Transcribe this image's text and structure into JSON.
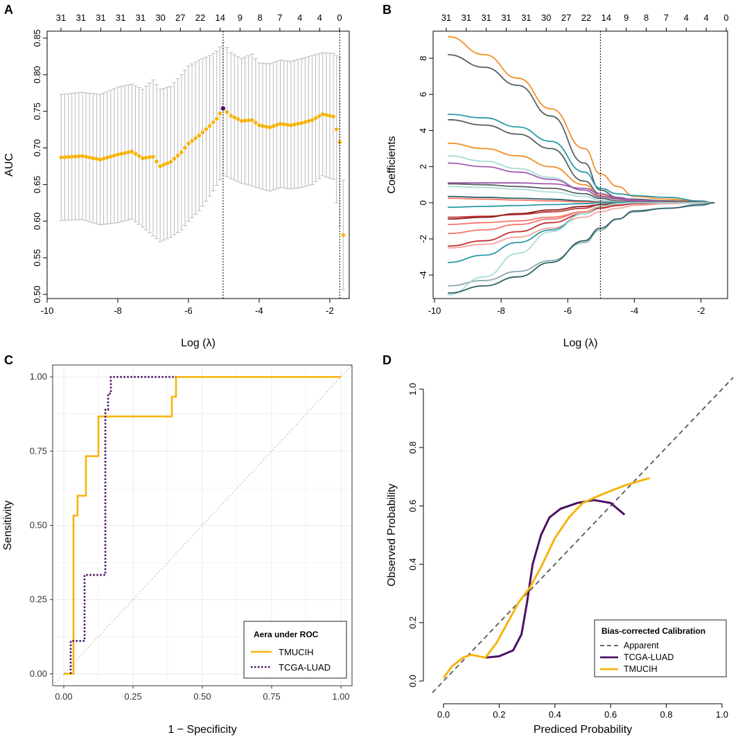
{
  "colors": {
    "gold": "#f6b40e",
    "purple": "#4b1060",
    "errorbar": "#b8b8b8",
    "grid": "#ebebeb",
    "diagonal": "#bdbdbd",
    "dashed": "#555555"
  },
  "chart_data": [
    {
      "panel": "A",
      "type": "scatter",
      "subtype": "cv-auc-errorbars",
      "xlabel": "Log (λ)",
      "ylabel": "AUC",
      "xlim": [
        -10,
        -1.45
      ],
      "ylim": [
        0.5,
        0.85
      ],
      "xticks": [
        "-10",
        "-8",
        "-6",
        "-4",
        "-2"
      ],
      "yticks": [
        "0.50",
        "0.55",
        "0.60",
        "0.65",
        "0.70",
        "0.75",
        "0.80",
        "0.85"
      ],
      "top_axis_labels": [
        "31",
        "31",
        "31",
        "31",
        "31",
        "30",
        "27",
        "22",
        "14",
        "9",
        "8",
        "7",
        "4",
        "4",
        "0"
      ],
      "vlines": [
        -5.02,
        -1.72
      ],
      "highlight_point": {
        "x": -5.02,
        "y": 0.754
      },
      "points": [
        {
          "x": -9.6,
          "y": 0.687,
          "lo": 0.601,
          "hi": 0.773
        },
        {
          "x": -9.0,
          "y": 0.689,
          "lo": 0.602,
          "hi": 0.776
        },
        {
          "x": -8.5,
          "y": 0.684,
          "lo": 0.595,
          "hi": 0.773
        },
        {
          "x": -8.0,
          "y": 0.691,
          "lo": 0.598,
          "hi": 0.783
        },
        {
          "x": -7.6,
          "y": 0.695,
          "lo": 0.603,
          "hi": 0.787
        },
        {
          "x": -7.3,
          "y": 0.686,
          "lo": 0.592,
          "hi": 0.78
        },
        {
          "x": -7.0,
          "y": 0.688,
          "lo": 0.58,
          "hi": 0.793
        },
        {
          "x": -6.8,
          "y": 0.675,
          "lo": 0.572,
          "hi": 0.78
        },
        {
          "x": -6.5,
          "y": 0.681,
          "lo": 0.578,
          "hi": 0.784
        },
        {
          "x": -6.2,
          "y": 0.694,
          "lo": 0.588,
          "hi": 0.8
        },
        {
          "x": -6.0,
          "y": 0.706,
          "lo": 0.6,
          "hi": 0.812
        },
        {
          "x": -5.7,
          "y": 0.717,
          "lo": 0.614,
          "hi": 0.82
        },
        {
          "x": -5.4,
          "y": 0.73,
          "lo": 0.634,
          "hi": 0.826
        },
        {
          "x": -5.2,
          "y": 0.74,
          "lo": 0.649,
          "hi": 0.832
        },
        {
          "x": -5.02,
          "y": 0.754,
          "lo": 0.664,
          "hi": 0.844
        },
        {
          "x": -4.8,
          "y": 0.744,
          "lo": 0.658,
          "hi": 0.83
        },
        {
          "x": -4.5,
          "y": 0.737,
          "lo": 0.652,
          "hi": 0.822
        },
        {
          "x": -4.2,
          "y": 0.738,
          "lo": 0.648,
          "hi": 0.828
        },
        {
          "x": -4.0,
          "y": 0.731,
          "lo": 0.645,
          "hi": 0.816
        },
        {
          "x": -3.7,
          "y": 0.728,
          "lo": 0.641,
          "hi": 0.815
        },
        {
          "x": -3.4,
          "y": 0.733,
          "lo": 0.646,
          "hi": 0.82
        },
        {
          "x": -3.1,
          "y": 0.731,
          "lo": 0.644,
          "hi": 0.818
        },
        {
          "x": -2.8,
          "y": 0.734,
          "lo": 0.646,
          "hi": 0.822
        },
        {
          "x": -2.5,
          "y": 0.738,
          "lo": 0.65,
          "hi": 0.826
        },
        {
          "x": -2.2,
          "y": 0.746,
          "lo": 0.662,
          "hi": 0.83
        },
        {
          "x": -1.9,
          "y": 0.743,
          "lo": 0.657,
          "hi": 0.829
        },
        {
          "x": -1.72,
          "y": 0.708,
          "lo": 0.593,
          "hi": 0.823
        },
        {
          "x": -1.62,
          "y": 0.581,
          "lo": 0.506,
          "hi": 0.656
        }
      ]
    },
    {
      "panel": "B",
      "type": "line",
      "subtype": "lasso-coefficient-paths",
      "xlabel": "Log (λ)",
      "ylabel": "Coefficients",
      "xlim": [
        -10,
        -1.2
      ],
      "ylim": [
        -5.3,
        9.5
      ],
      "xticks": [
        "-10",
        "-8",
        "-6",
        "-4",
        "-2"
      ],
      "yticks": [
        "-4",
        "-2",
        "0",
        "2",
        "4",
        "6",
        "8"
      ],
      "top_axis_labels": [
        "31",
        "31",
        "31",
        "31",
        "31",
        "30",
        "27",
        "22",
        "14",
        "9",
        "8",
        "7",
        "4",
        "4",
        "0"
      ],
      "vline": -5.02,
      "x": [
        -9.6,
        -8.5,
        -7.5,
        -6.5,
        -5.5,
        -5.02,
        -4.5,
        -4.0,
        -3.0,
        -2.0,
        -1.6
      ],
      "series": [
        {
          "color": "#f28e2b",
          "values": [
            9.2,
            8.2,
            6.9,
            5.2,
            3.0,
            1.6,
            0.9,
            0.35,
            0.2,
            0.08,
            0
          ]
        },
        {
          "color": "#555f5f",
          "values": [
            8.2,
            7.5,
            6.5,
            4.8,
            2.2,
            0.7,
            0.3,
            0.15,
            0.1,
            0.05,
            0
          ]
        },
        {
          "color": "#2a9aa8",
          "values": [
            4.9,
            4.7,
            4.2,
            3.4,
            1.7,
            0.8,
            0.5,
            0.4,
            0.3,
            0.1,
            0
          ]
        },
        {
          "color": "#555f5f",
          "values": [
            4.6,
            4.3,
            3.8,
            3.0,
            1.2,
            0.5,
            0.25,
            0.2,
            0.1,
            0.05,
            0
          ]
        },
        {
          "color": "#f28e2b",
          "values": [
            3.3,
            3.0,
            2.6,
            2.0,
            1.0,
            0.4,
            0.2,
            0.1,
            0.05,
            0.02,
            0
          ]
        },
        {
          "color": "#aadcd7",
          "values": [
            2.6,
            2.3,
            1.9,
            1.4,
            0.7,
            0.3,
            0.1,
            0.05,
            0.02,
            0.01,
            0
          ]
        },
        {
          "color": "#a25ab0",
          "values": [
            2.2,
            2.0,
            1.7,
            1.3,
            0.7,
            0.35,
            0.2,
            0.1,
            0.05,
            0.02,
            0
          ]
        },
        {
          "color": "#a25ab0",
          "values": [
            1.1,
            1.1,
            1.1,
            1.05,
            0.8,
            0.5,
            0.3,
            0.15,
            0.05,
            0.02,
            0
          ]
        },
        {
          "color": "#555f5f",
          "values": [
            1.05,
            1.0,
            0.9,
            0.8,
            0.5,
            0.25,
            0.1,
            0.05,
            0.02,
            0.01,
            0
          ]
        },
        {
          "color": "#aadcd7",
          "values": [
            0.9,
            0.85,
            0.75,
            0.6,
            0.35,
            0.15,
            0.05,
            0.02,
            0.01,
            0,
            0
          ]
        },
        {
          "color": "#2f5f64",
          "values": [
            0.35,
            0.3,
            0.25,
            0.2,
            0.1,
            0.05,
            0.02,
            0.01,
            0,
            0,
            0
          ]
        },
        {
          "color": "#f4766a",
          "values": [
            0.25,
            0.2,
            0.15,
            0.1,
            0.05,
            0.02,
            0.01,
            0,
            0,
            0,
            0
          ]
        },
        {
          "color": "#2a9aa8",
          "values": [
            -0.25,
            -0.2,
            -0.15,
            -0.1,
            -0.05,
            0,
            0,
            0,
            0,
            0,
            0
          ]
        },
        {
          "color": "#c03030",
          "values": [
            -0.8,
            -0.75,
            -0.65,
            -0.5,
            -0.3,
            -0.1,
            -0.05,
            0,
            0,
            0,
            0
          ]
        },
        {
          "color": "#8b1e1e",
          "values": [
            -0.9,
            -0.8,
            -0.6,
            -0.4,
            -0.2,
            -0.1,
            -0.05,
            -0.02,
            0,
            0,
            0
          ]
        },
        {
          "color": "#f4766a",
          "values": [
            -1.2,
            -1.1,
            -1.0,
            -0.8,
            -0.5,
            -0.25,
            -0.1,
            -0.05,
            0,
            0,
            0
          ]
        },
        {
          "color": "#f4766a",
          "values": [
            -1.7,
            -1.5,
            -1.2,
            -0.9,
            -0.5,
            -0.2,
            -0.1,
            -0.05,
            0,
            0,
            0
          ]
        },
        {
          "color": "#c03030",
          "values": [
            -2.4,
            -2.1,
            -1.6,
            -1.1,
            -0.6,
            -0.3,
            -0.15,
            -0.05,
            0,
            0,
            0
          ]
        },
        {
          "color": "#f4a39a",
          "values": [
            -2.5,
            -2.3,
            -1.9,
            -1.4,
            -0.8,
            -0.5,
            -0.3,
            -0.15,
            -0.05,
            0,
            0
          ]
        },
        {
          "color": "#2a9aa8",
          "values": [
            -3.3,
            -2.9,
            -2.2,
            -1.5,
            -0.6,
            -0.2,
            -0.05,
            0,
            0,
            0,
            0
          ]
        },
        {
          "color": "#8aa8b4",
          "values": [
            -4.6,
            -4.3,
            -3.8,
            -3.2,
            -2.2,
            -1.5,
            -0.9,
            -0.5,
            -0.3,
            -0.15,
            0
          ]
        },
        {
          "color": "#aadcd7",
          "values": [
            -5.1,
            -4.1,
            -2.8,
            -1.6,
            -0.6,
            -0.2,
            -0.05,
            0,
            0,
            0,
            0
          ]
        },
        {
          "color": "#2f5f64",
          "values": [
            -5.0,
            -4.6,
            -4.1,
            -3.3,
            -2.1,
            -1.4,
            -0.9,
            -0.45,
            -0.3,
            -0.1,
            0
          ]
        }
      ]
    },
    {
      "panel": "C",
      "type": "line",
      "subtype": "roc",
      "xlabel": "1 − Specificity",
      "ylabel": "Sensitivity",
      "xlim": [
        -0.04,
        1.04
      ],
      "ylim": [
        -0.04,
        1.04
      ],
      "xticks": [
        "0.00",
        "0.25",
        "0.50",
        "0.75",
        "1.00"
      ],
      "yticks": [
        "0.00",
        "0.25",
        "0.50",
        "0.75",
        "1.00"
      ],
      "legend": {
        "title": "Aera under ROC",
        "items": [
          "TMUCIH",
          "TCGA-LUAD"
        ],
        "position": "bottom-right"
      },
      "series": [
        {
          "name": "TMUCIH",
          "style": "solid",
          "color": "#f6b40e",
          "points": [
            [
              0,
              0
            ],
            [
              0.035,
              0
            ],
            [
              0.035,
              0.533
            ],
            [
              0.05,
              0.533
            ],
            [
              0.05,
              0.6
            ],
            [
              0.08,
              0.6
            ],
            [
              0.08,
              0.733
            ],
            [
              0.125,
              0.733
            ],
            [
              0.125,
              0.867
            ],
            [
              0.39,
              0.867
            ],
            [
              0.39,
              0.933
            ],
            [
              0.405,
              0.933
            ],
            [
              0.405,
              1.0
            ],
            [
              1.0,
              1.0
            ]
          ]
        },
        {
          "name": "TCGA-LUAD",
          "style": "dotted",
          "color": "#4b1060",
          "points": [
            [
              0.025,
              0
            ],
            [
              0.025,
              0.111
            ],
            [
              0.075,
              0.111
            ],
            [
              0.075,
              0.333
            ],
            [
              0.15,
              0.333
            ],
            [
              0.15,
              0.889
            ],
            [
              0.16,
              0.889
            ],
            [
              0.16,
              0.944
            ],
            [
              0.17,
              0.944
            ],
            [
              0.17,
              1.0
            ],
            [
              0.405,
              1.0
            ]
          ]
        }
      ]
    },
    {
      "panel": "D",
      "type": "line",
      "subtype": "calibration",
      "xlabel": "Prediced Probability",
      "ylabel": "Observed Probability",
      "xlim": [
        -0.04,
        1.04
      ],
      "ylim": [
        -0.04,
        1.04
      ],
      "xticks": [
        "0.0",
        "0.2",
        "0.4",
        "0.6",
        "0.8",
        "1.0"
      ],
      "yticks": [
        "0.0",
        "0.2",
        "0.4",
        "0.6",
        "0.8",
        "1.0"
      ],
      "legend": {
        "title": "Bias-corrected Calibration",
        "items": [
          "Apparent",
          "TCGA-LUAD",
          "TMUCIH"
        ],
        "position": "bottom-right"
      },
      "series": [
        {
          "name": "Apparent",
          "style": "dashed",
          "color": "#555555",
          "points": [
            [
              -0.04,
              -0.04
            ],
            [
              1.04,
              1.04
            ]
          ]
        },
        {
          "name": "TCGA-LUAD",
          "style": "solid",
          "color": "#4b1060",
          "points": [
            [
              0.15,
              0.08
            ],
            [
              0.2,
              0.085
            ],
            [
              0.25,
              0.105
            ],
            [
              0.28,
              0.16
            ],
            [
              0.3,
              0.27
            ],
            [
              0.32,
              0.4
            ],
            [
              0.35,
              0.5
            ],
            [
              0.38,
              0.56
            ],
            [
              0.42,
              0.59
            ],
            [
              0.48,
              0.61
            ],
            [
              0.54,
              0.62
            ],
            [
              0.6,
              0.61
            ],
            [
              0.65,
              0.57
            ]
          ]
        },
        {
          "name": "TMUCIH",
          "style": "solid",
          "color": "#f6b40e",
          "points": [
            [
              0.0,
              0.01
            ],
            [
              0.03,
              0.05
            ],
            [
              0.07,
              0.08
            ],
            [
              0.1,
              0.09
            ],
            [
              0.15,
              0.08
            ],
            [
              0.19,
              0.13
            ],
            [
              0.23,
              0.2
            ],
            [
              0.27,
              0.27
            ],
            [
              0.31,
              0.32
            ],
            [
              0.35,
              0.39
            ],
            [
              0.4,
              0.49
            ],
            [
              0.45,
              0.56
            ],
            [
              0.5,
              0.61
            ],
            [
              0.57,
              0.64
            ],
            [
              0.65,
              0.67
            ],
            [
              0.72,
              0.69
            ],
            [
              0.74,
              0.695
            ]
          ]
        }
      ]
    }
  ]
}
